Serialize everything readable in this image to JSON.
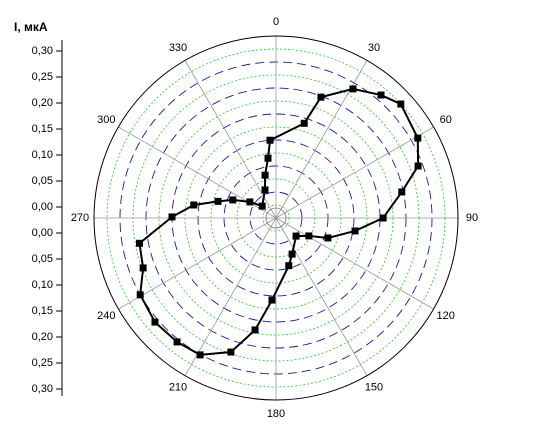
{
  "chart_data": {
    "type": "polar",
    "y_label": "I, мкА",
    "rlim": [
      0,
      0.35
    ],
    "rticks": [
      {
        "value": 0,
        "label": "0,00"
      },
      {
        "value": 0.05,
        "label": "0,05"
      },
      {
        "value": 0.1,
        "label": "0,10"
      },
      {
        "value": 0.15,
        "label": "0,15"
      },
      {
        "value": 0.2,
        "label": "0,20"
      },
      {
        "value": 0.25,
        "label": "0,25"
      },
      {
        "value": 0.3,
        "label": "0,30"
      }
    ],
    "minor_rticks": [
      0.025,
      0.075,
      0.125,
      0.175,
      0.225,
      0.275,
      0.325
    ],
    "angleticks": [
      0,
      30,
      60,
      90,
      120,
      150,
      180,
      210,
      240,
      270,
      300,
      330
    ],
    "grid": true,
    "series": [
      {
        "color": "#000000",
        "theta": [
          16.6,
          20.4,
          30.8,
          40.5,
          47.6,
          60.6,
          69.9,
          78.3,
          90,
          99.3,
          111,
          118.6,
          132,
          156,
          165,
          182.8,
          190.6,
          198.6,
          209,
          218.6,
          229.3,
          240.5,
          249.4,
          259.5,
          270.6,
          279,
          286,
          292.7,
          301.6,
          310.6,
          338.6,
          345.7,
          352.4,
          355.6
        ],
        "values": [
          0.19,
          0.248,
          0.289,
          0.311,
          0.325,
          0.313,
          0.291,
          0.247,
          0.206,
          0.154,
          0.107,
          0.072,
          0.052,
          0.076,
          0.095,
          0.158,
          0.219,
          0.272,
          0.301,
          0.305,
          0.307,
          0.3,
          0.273,
          0.267,
          0.2,
          0.16,
          0.116,
          0.09,
          0.059,
          0.035,
          0.058,
          0.085,
          0.116,
          0.15
        ]
      }
    ]
  }
}
